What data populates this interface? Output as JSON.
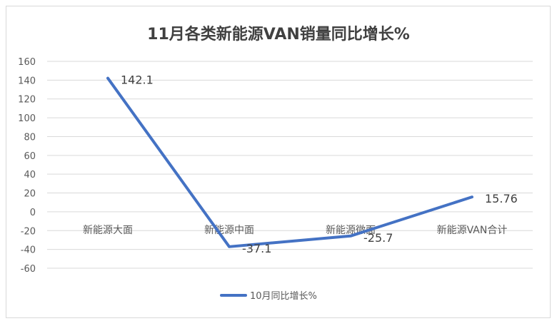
{
  "chart_data": {
    "type": "line",
    "title": "11月各类新能源VAN销量同比增长%",
    "categories": [
      "新能源大面",
      "新能源中面",
      "新能源微面",
      "新能源VAN合计"
    ],
    "series": [
      {
        "name": "10月同比增长%",
        "values": [
          142.1,
          -37.1,
          -25.7,
          15.76
        ],
        "color": "#4472C4"
      }
    ],
    "data_labels": [
      "142.1",
      "-37.1",
      "-25.7",
      "15.76"
    ],
    "ylim": [
      -60,
      160
    ],
    "yticks": [
      160,
      140,
      120,
      100,
      80,
      60,
      40,
      20,
      0,
      -20,
      -40,
      -60
    ],
    "grid": true,
    "legend": "bottom",
    "xlabel": "",
    "ylabel": ""
  }
}
